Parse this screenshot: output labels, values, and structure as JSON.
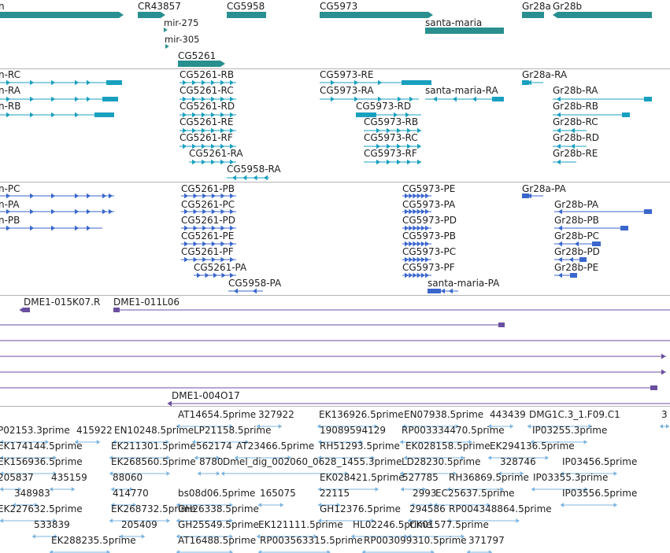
{
  "colors": {
    "gene": "#2a8f8f",
    "transcript_rna": "#1aa0bf",
    "transcript_protein": "#3a66cc",
    "clone": "#6a4fa0",
    "est": "#7db4e0",
    "separator": "#b4b4b4"
  },
  "tracks": {
    "genes": {
      "labels": [
        "n",
        "CR43857",
        "CG5958",
        "CG5973",
        "Gr28a",
        "Gr28b",
        "mir-275",
        "santa-maria",
        "mir-305",
        "CG5261"
      ]
    },
    "transcripts": {
      "labels": [
        "n-RC",
        "n-RA",
        "n-RB",
        "CG5261-RB",
        "CG5261-RC",
        "CG5261-RD",
        "CG5261-RE",
        "CG5261-RF",
        "CG5261-RA",
        "CG5958-RA",
        "CG5973-RE",
        "CG5973-RA",
        "santa-maria-RA",
        "CG5973-RD",
        "CG5973-RB",
        "CG5973-RC",
        "CG5973-RF",
        "Gr28a-RA",
        "Gr28b-RA",
        "Gr28b-RB",
        "Gr28b-RC",
        "Gr28b-RD",
        "Gr28b-RE"
      ]
    },
    "proteins": {
      "labels": [
        "n-PC",
        "n-PA",
        "n-PB",
        "CG5261-PB",
        "CG5261-PC",
        "CG5261-PD",
        "CG5261-PE",
        "CG5261-PF",
        "CG5261-PA",
        "CG5958-PA",
        "CG5973-PE",
        "CG5973-PA",
        "CG5973-PD",
        "CG5973-PB",
        "CG5973-PC",
        "CG5973-PF",
        "santa-maria-PA",
        "Gr28a-PA",
        "Gr28b-PA",
        "Gr28b-PB",
        "Gr28b-PC",
        "Gr28b-PD",
        "Gr28b-PE"
      ]
    },
    "clones": {
      "labels": [
        "DME1-015K07.R",
        "DME1-011L06",
        "DME1-004O17"
      ]
    },
    "ests": {
      "labels": [
        "AT14654.5prime",
        "327922",
        "EK136926.5prime",
        "EN07938.5prime",
        "443439",
        "DMG1C.3_1.F09.C1",
        "3",
        "P02153.3prime",
        "415922",
        "EN10248.5prime",
        "LP21158.5prime",
        "19089594129",
        "RP003334470.5prime",
        "IP03255.3prime",
        "EK174144.5prime",
        "EK211301.5prime",
        "562174",
        "AT23466.5prime",
        "RH51293.5prime",
        "EK028158.5prime",
        "EK294136.5prime",
        "EK156936.5prime",
        "EK268560.5prime",
        "8780",
        "Dmel_dig_002060_0628_1455.3prime",
        "LD28230.5prime",
        "328746",
        "IP03456.5prime",
        "205837",
        "435159",
        "88060",
        "EK028421.5prime",
        "527785",
        "RH36869.5prime",
        "IP03355.3prime",
        "348983",
        "414770",
        "bs08d06.5prime",
        "165075",
        "22115",
        "2993",
        "EC25637.5prime",
        "IP03556.5prime",
        "EK227632.5prime",
        "EK268732.5prime",
        "GH26338.5prime",
        "GH12376.5prime",
        "294586",
        "RP004348864.5prime",
        "533839",
        "205409",
        "GH25549.5prime",
        "EK121111.5prime",
        "HL02246.5prime",
        "CK01577.5prime",
        "EK288235.5prime",
        "AT16488.5prime",
        "RP003563315.5prime",
        "RP003099310.5prime",
        "371797"
      ]
    }
  }
}
